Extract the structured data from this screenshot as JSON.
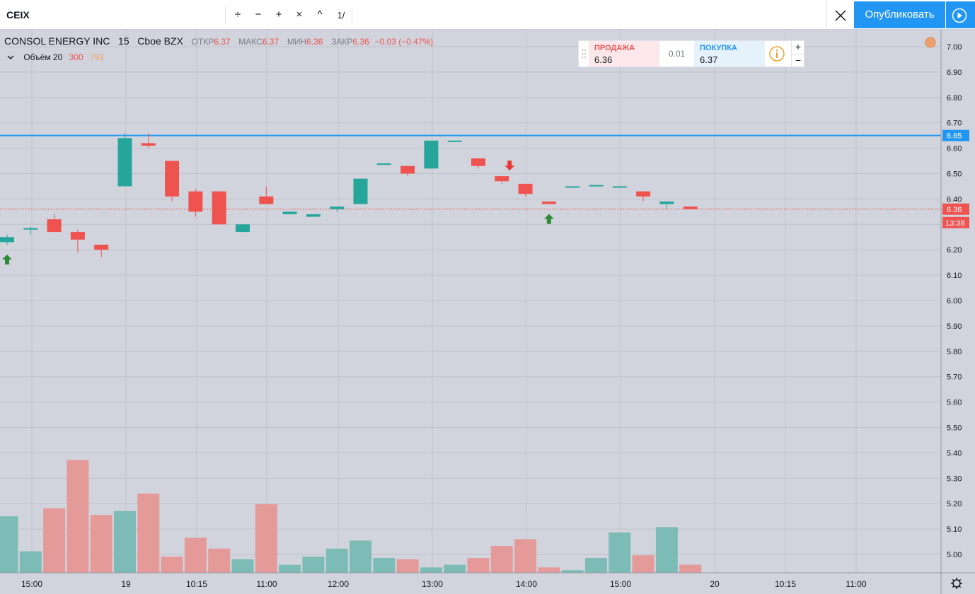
{
  "toolbar": {
    "symbol": "CEIX",
    "ops": [
      "÷",
      "−",
      "+",
      "×",
      "^",
      "1/"
    ],
    "publish_label": "Опубликовать"
  },
  "legend": {
    "name": "CONSOL ENERGY INC",
    "interval": "15",
    "exchange": "Cboe BZX",
    "open_label": "ОТКР",
    "open": "6.37",
    "high_label": "МАКС",
    "high": "6.37",
    "low_label": "МИН",
    "low": "6.36",
    "close_label": "ЗАКР",
    "close": "6.36",
    "change": "−0.03 (−0.47%)",
    "volume_label": "Объём 20",
    "volume_a": "300",
    "volume_b": "791"
  },
  "trade_panel": {
    "sell_label": "ПРОДАЖА",
    "sell_price": "6.36",
    "spread": "0.01",
    "buy_label": "ПОКУПКА",
    "buy_price": "6.37",
    "plus": "+",
    "minus": "−"
  },
  "colors": {
    "up": "#26a69a",
    "down": "#ef5350",
    "vol_up": "#7dbcb6",
    "vol_down": "#e59a9a",
    "accent": "#2196f3",
    "bg": "#d1d4dc"
  },
  "chart_data": {
    "type": "candlestick",
    "y_ticks": [
      "7.00",
      "6.90",
      "6.80",
      "6.70",
      "6.60",
      "6.50",
      "6.40",
      "6.30",
      "6.20",
      "6.10",
      "6.00",
      "5.90",
      "5.80",
      "5.70",
      "5.60",
      "5.50",
      "5.40",
      "5.30",
      "5.20",
      "5.10",
      "5.00"
    ],
    "x_ticks": [
      "15:00",
      "19",
      "10:15",
      "11:00",
      "12:00",
      "13:00",
      "14:00",
      "15:00",
      "20",
      "10:15",
      "11:00"
    ],
    "candles": [
      {
        "o": 6.23,
        "h": 6.26,
        "l": 6.22,
        "c": 6.25,
        "v": 0.42
      },
      {
        "o": 6.28,
        "h": 6.29,
        "l": 6.26,
        "c": 6.285,
        "v": 0.16
      },
      {
        "o": 6.32,
        "h": 6.34,
        "l": 6.27,
        "c": 6.27,
        "v": 0.48
      },
      {
        "o": 6.27,
        "h": 6.28,
        "l": 6.19,
        "c": 6.24,
        "v": 0.84
      },
      {
        "o": 6.22,
        "h": 6.22,
        "l": 6.17,
        "c": 6.2,
        "v": 0.43
      },
      {
        "o": 6.45,
        "h": 6.66,
        "l": 6.45,
        "c": 6.64,
        "v": 0.46
      },
      {
        "o": 6.62,
        "h": 6.66,
        "l": 6.6,
        "c": 6.61,
        "v": 0.59
      },
      {
        "o": 6.55,
        "h": 6.55,
        "l": 6.39,
        "c": 6.41,
        "v": 0.12
      },
      {
        "o": 6.43,
        "h": 6.44,
        "l": 6.33,
        "c": 6.35,
        "v": 0.26
      },
      {
        "o": 6.43,
        "h": 6.43,
        "l": 6.3,
        "c": 6.3,
        "v": 0.18
      },
      {
        "o": 6.27,
        "h": 6.3,
        "l": 6.27,
        "c": 6.3,
        "v": 0.1
      },
      {
        "o": 6.41,
        "h": 6.45,
        "l": 6.38,
        "c": 6.38,
        "v": 0.51
      },
      {
        "o": 6.34,
        "h": 6.35,
        "l": 6.34,
        "c": 6.35,
        "v": 0.06
      },
      {
        "o": 6.33,
        "h": 6.34,
        "l": 6.33,
        "c": 6.34,
        "v": 0.12
      },
      {
        "o": 6.36,
        "h": 6.37,
        "l": 6.35,
        "c": 6.37,
        "v": 0.18
      },
      {
        "o": 6.38,
        "h": 6.48,
        "l": 6.38,
        "c": 6.48,
        "v": 0.24
      },
      {
        "o": 6.54,
        "h": 6.54,
        "l": 6.54,
        "c": 6.54,
        "v": 0.11
      },
      {
        "o": 6.53,
        "h": 6.53,
        "l": 6.49,
        "c": 6.5,
        "v": 0.1
      },
      {
        "o": 6.52,
        "h": 6.63,
        "l": 6.52,
        "c": 6.63,
        "v": 0.04
      },
      {
        "o": 6.625,
        "h": 6.63,
        "l": 6.625,
        "c": 6.63,
        "v": 0.06
      },
      {
        "o": 6.56,
        "h": 6.56,
        "l": 6.52,
        "c": 6.53,
        "v": 0.11
      },
      {
        "o": 6.49,
        "h": 6.49,
        "l": 6.46,
        "c": 6.47,
        "v": 0.2
      },
      {
        "o": 6.46,
        "h": 6.46,
        "l": 6.41,
        "c": 6.42,
        "v": 0.25
      },
      {
        "o": 6.39,
        "h": 6.39,
        "l": 6.38,
        "c": 6.38,
        "v": 0.04
      },
      {
        "o": 6.45,
        "h": 6.45,
        "l": 6.45,
        "c": 6.45,
        "v": 0.02
      },
      {
        "o": 6.45,
        "h": 6.455,
        "l": 6.45,
        "c": 6.455,
        "v": 0.11
      },
      {
        "o": 6.45,
        "h": 6.45,
        "l": 6.45,
        "c": 6.45,
        "v": 0.3
      },
      {
        "o": 6.43,
        "h": 6.43,
        "l": 6.39,
        "c": 6.41,
        "v": 0.13
      },
      {
        "o": 6.38,
        "h": 6.39,
        "l": 6.36,
        "c": 6.39,
        "v": 0.34
      },
      {
        "o": 6.37,
        "h": 6.37,
        "l": 6.36,
        "c": 6.36,
        "v": 0.06
      }
    ],
    "horizontal_line": {
      "value": 6.65,
      "label": "6.65"
    },
    "last_price": {
      "value": 6.36,
      "label": "6.36",
      "countdown": "13:38"
    },
    "arrows_up": [
      0,
      23
    ],
    "arrows_down": [
      21
    ],
    "ylim": [
      4.92,
      7.05
    ]
  }
}
